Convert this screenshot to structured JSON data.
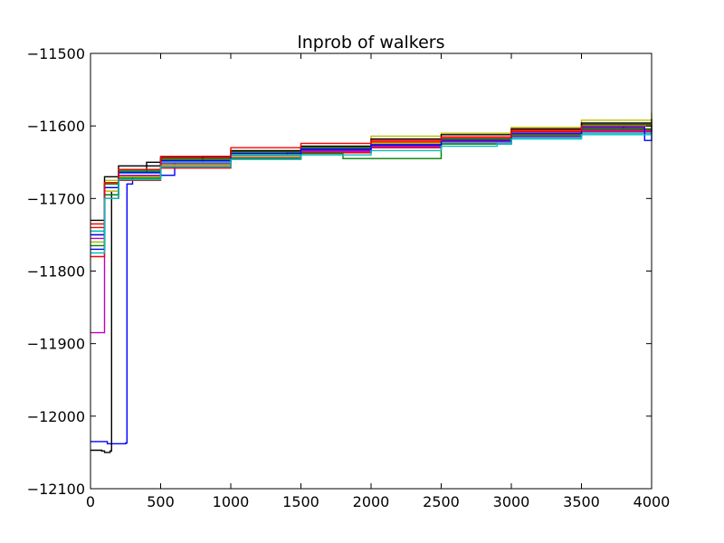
{
  "chart_data": {
    "type": "line",
    "title": "lnprob of walkers",
    "xlabel": "",
    "ylabel": "",
    "xlim": [
      0,
      4000
    ],
    "ylim": [
      -12100,
      -11500
    ],
    "xticks": [
      0,
      500,
      1000,
      1500,
      2000,
      2500,
      3000,
      3500,
      4000
    ],
    "yticks": [
      -12100,
      -12000,
      -11900,
      -11800,
      -11700,
      -11600,
      -11500
    ],
    "xtick_labels": [
      "0",
      "500",
      "1000",
      "1500",
      "2000",
      "2500",
      "3000",
      "3500",
      "4000"
    ],
    "ytick_labels": [
      "−12100",
      "−12000",
      "−11900",
      "−11800",
      "−11700",
      "−11600",
      "−11500"
    ],
    "grid": false,
    "legend": "none",
    "colors": [
      "#0000ff",
      "#008000",
      "#ff0000",
      "#00bfbf",
      "#bf00bf",
      "#bfbf00",
      "#000000"
    ],
    "series": [
      {
        "color": "#0000ff",
        "x": [
          0,
          80,
          120,
          250,
          260,
          300,
          600,
          1000,
          1500,
          2000,
          2500,
          3000,
          3500,
          3800,
          4000
        ],
        "y": [
          -12035,
          -12035,
          -12038,
          -12037,
          -11680,
          -11668,
          -11650,
          -11640,
          -11633,
          -11628,
          -11622,
          -11615,
          -11605,
          -11600,
          -11598
        ]
      },
      {
        "color": "#000000",
        "x": [
          0,
          80,
          100,
          140,
          150,
          200,
          400,
          800,
          1400,
          2000,
          2500,
          3000,
          3500,
          4000
        ],
        "y": [
          -12047,
          -12048,
          -12050,
          -12048,
          -11690,
          -11665,
          -11650,
          -11642,
          -11636,
          -11630,
          -11622,
          -11612,
          -11600,
          -11595
        ]
      },
      {
        "color": "#00bfbf",
        "x": [
          0,
          100,
          200,
          500,
          1000,
          1500,
          2000,
          2500,
          3000,
          3500,
          4000
        ],
        "y": [
          -11760,
          -11680,
          -11662,
          -11650,
          -11642,
          -11636,
          -11630,
          -11624,
          -11616,
          -11610,
          -11605
        ]
      },
      {
        "color": "#008000",
        "x": [
          0,
          100,
          200,
          500,
          1000,
          1500,
          2000,
          2500,
          3000,
          3500,
          4000
        ],
        "y": [
          -11750,
          -11690,
          -11670,
          -11652,
          -11640,
          -11632,
          -11625,
          -11618,
          -11610,
          -11600,
          -11594
        ]
      },
      {
        "color": "#ff0000",
        "x": [
          0,
          100,
          200,
          500,
          1000,
          1500,
          2000,
          2500,
          3000,
          3500,
          4000
        ],
        "y": [
          -11740,
          -11680,
          -11665,
          -11645,
          -11635,
          -11628,
          -11622,
          -11617,
          -11608,
          -11600,
          -11595
        ]
      },
      {
        "color": "#bf00bf",
        "x": [
          0,
          100,
          200,
          500,
          1000,
          1500,
          2000,
          2500,
          3000,
          3500,
          4000
        ],
        "y": [
          -11885,
          -11700,
          -11672,
          -11655,
          -11644,
          -11636,
          -11630,
          -11622,
          -11612,
          -11605,
          -11600
        ]
      },
      {
        "color": "#bfbf00",
        "x": [
          0,
          100,
          200,
          500,
          1000,
          1500,
          2000,
          2500,
          3000,
          3500,
          4000
        ],
        "y": [
          -11735,
          -11675,
          -11660,
          -11648,
          -11638,
          -11630,
          -11614,
          -11610,
          -11602,
          -11592,
          -11582
        ]
      },
      {
        "color": "#0000ff",
        "x": [
          0,
          100,
          200,
          500,
          1000,
          1500,
          2000,
          2500,
          3000,
          3500,
          4000
        ],
        "y": [
          -11770,
          -11695,
          -11668,
          -11650,
          -11640,
          -11633,
          -11627,
          -11620,
          -11612,
          -11606,
          -11602
        ]
      },
      {
        "color": "#008000",
        "x": [
          0,
          100,
          200,
          500,
          1000,
          1500,
          2000,
          2500,
          3000,
          3500,
          4000
        ],
        "y": [
          -11745,
          -11680,
          -11662,
          -11646,
          -11636,
          -11630,
          -11624,
          -11618,
          -11606,
          -11598,
          -11592
        ]
      },
      {
        "color": "#ff0000",
        "x": [
          0,
          100,
          200,
          500,
          1000,
          1500,
          2000,
          2500,
          3000,
          3500,
          4000
        ],
        "y": [
          -11780,
          -11700,
          -11675,
          -11658,
          -11646,
          -11637,
          -11630,
          -11622,
          -11614,
          -11606,
          -11600
        ]
      },
      {
        "color": "#00bfbf",
        "x": [
          0,
          100,
          200,
          500,
          1000,
          1500,
          2000,
          2500,
          3000,
          3500,
          4000
        ],
        "y": [
          -11745,
          -11685,
          -11665,
          -11650,
          -11640,
          -11632,
          -11626,
          -11620,
          -11612,
          -11604,
          -11596
        ]
      },
      {
        "color": "#bf00bf",
        "x": [
          0,
          100,
          200,
          500,
          1000,
          1500,
          2000,
          2500,
          3000,
          3500,
          4000
        ],
        "y": [
          -11755,
          -11690,
          -11668,
          -11652,
          -11642,
          -11634,
          -11628,
          -11622,
          -11614,
          -11608,
          -11603
        ]
      },
      {
        "color": "#000000",
        "x": [
          0,
          100,
          200,
          500,
          1000,
          1500,
          2000,
          2500,
          3000,
          3500,
          4000
        ],
        "y": [
          -11730,
          -11670,
          -11655,
          -11643,
          -11634,
          -11628,
          -11618,
          -11612,
          -11604,
          -11596,
          -11590
        ]
      },
      {
        "color": "#bfbf00",
        "x": [
          0,
          100,
          200,
          500,
          1000,
          1500,
          2000,
          2500,
          3000,
          3500,
          4000
        ],
        "y": [
          -11760,
          -11690,
          -11670,
          -11654,
          -11642,
          -11632,
          -11624,
          -11620,
          -11610,
          -11600,
          -11592
        ]
      },
      {
        "color": "#008000",
        "x": [
          0,
          100,
          200,
          500,
          1000,
          1500,
          1800,
          2500,
          3000,
          3500,
          4000
        ],
        "y": [
          -11765,
          -11695,
          -11672,
          -11656,
          -11645,
          -11638,
          -11645,
          -11625,
          -11612,
          -11604,
          -11598
        ]
      },
      {
        "color": "#0000ff",
        "x": [
          0,
          100,
          200,
          500,
          1000,
          1500,
          2000,
          2500,
          3000,
          3500,
          3950,
          4000
        ],
        "y": [
          -11750,
          -11685,
          -11664,
          -11648,
          -11638,
          -11632,
          -11626,
          -11620,
          -11610,
          -11602,
          -11620,
          -11605
        ]
      },
      {
        "color": "#ff0000",
        "x": [
          0,
          100,
          200,
          500,
          1000,
          1500,
          2000,
          2500,
          3000,
          3500,
          4000
        ],
        "y": [
          -11735,
          -11678,
          -11660,
          -11642,
          -11630,
          -11624,
          -11620,
          -11615,
          -11606,
          -11600,
          -11596
        ]
      },
      {
        "color": "#00bfbf",
        "x": [
          0,
          100,
          200,
          500,
          1000,
          1500,
          2000,
          2500,
          2900,
          3000,
          3500,
          4000
        ],
        "y": [
          -11775,
          -11700,
          -11674,
          -11656,
          -11646,
          -11640,
          -11634,
          -11628,
          -11625,
          -11618,
          -11612,
          -11608
        ]
      }
    ]
  }
}
